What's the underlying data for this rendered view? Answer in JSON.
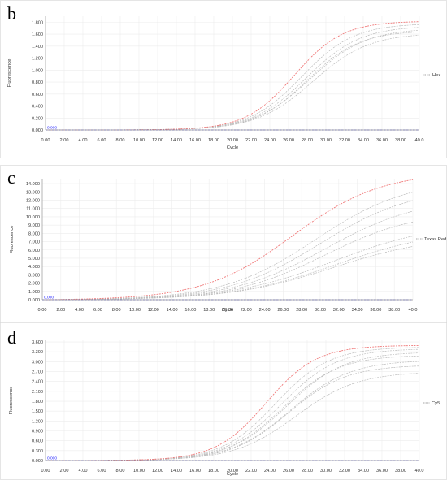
{
  "panels": [
    {
      "letter": "b"
    },
    {
      "letter": "c"
    },
    {
      "letter": "d"
    }
  ],
  "chart_data": [
    {
      "type": "line",
      "panel": "b",
      "xlabel": "Cycle",
      "ylabel": "Fluorescence",
      "xlim": [
        0,
        40
      ],
      "ylim": [
        0,
        1.9
      ],
      "x_ticks": [
        "0.00",
        "2.00",
        "4.00",
        "6.00",
        "8.00",
        "10.00",
        "12.00",
        "14.00",
        "16.00",
        "18.00",
        "20.00",
        "22.00",
        "24.00",
        "26.00",
        "28.00",
        "30.00",
        "32.00",
        "34.00",
        "36.00",
        "38.00",
        "40.0"
      ],
      "y_ticks": [
        "0.000",
        "0.200",
        "0.400",
        "0.600",
        "0.800",
        "1.000",
        "1.200",
        "1.400",
        "1.600",
        "1.800"
      ],
      "legend": "Hex",
      "legend_position": "right",
      "grid": true,
      "threshold": {
        "value": 0,
        "label": "0.000"
      },
      "colors": {
        "highlight": "#f07a7a",
        "other": "#bcbcbc",
        "threshold": "#2b2bd9"
      },
      "curves": [
        {
          "plateau": 1.82,
          "midpoint": 26.6,
          "slope": 2.6,
          "highlight": true
        },
        {
          "plateau": 1.78,
          "midpoint": 27.4,
          "slope": 2.8
        },
        {
          "plateau": 1.74,
          "midpoint": 27.9,
          "slope": 2.9
        },
        {
          "plateau": 1.7,
          "midpoint": 28.3,
          "slope": 3.0
        },
        {
          "plateau": 1.66,
          "midpoint": 28.0,
          "slope": 2.8
        },
        {
          "plateau": 1.62,
          "midpoint": 28.6,
          "slope": 3.0
        }
      ]
    },
    {
      "type": "line",
      "panel": "c",
      "xlabel": "Cycle",
      "ylabel": "Fluorescence",
      "xlim": [
        0,
        40
      ],
      "ylim": [
        0,
        14.5
      ],
      "x_ticks": [
        "0.00",
        "2.00",
        "4.00",
        "6.00",
        "8.00",
        "10.00",
        "12.00",
        "14.00",
        "16.00",
        "18.00",
        "20.00",
        "22.00",
        "24.00",
        "26.00",
        "28.00",
        "30.00",
        "32.00",
        "34.00",
        "36.00",
        "38.00",
        "40.0"
      ],
      "y_ticks": [
        "0.000",
        "1.000",
        "2.000",
        "3.000",
        "4.000",
        "5.000",
        "6.000",
        "7.000",
        "8.000",
        "9.000",
        "10.000",
        "11.000",
        "12.000",
        "13.000",
        "14.000"
      ],
      "legend": "Texas Red",
      "legend_position": "right",
      "grid": true,
      "threshold": {
        "value": 0,
        "label": "0.000"
      },
      "colors": {
        "highlight": "#f07a7a",
        "other": "#bcbcbc",
        "threshold": "#2b2bd9"
      },
      "curves": [
        {
          "plateau": 15.5,
          "midpoint": 27.0,
          "slope": 4.8,
          "highlight": true
        },
        {
          "plateau": 14.6,
          "midpoint": 29.5,
          "slope": 5.0
        },
        {
          "plateau": 13.6,
          "midpoint": 30.0,
          "slope": 5.0
        },
        {
          "plateau": 12.4,
          "midpoint": 30.6,
          "slope": 5.1
        },
        {
          "plateau": 10.8,
          "midpoint": 30.5,
          "slope": 5.0
        },
        {
          "plateau": 9.4,
          "midpoint": 31.5,
          "slope": 5.6
        },
        {
          "plateau": 8.6,
          "midpoint": 31.8,
          "slope": 5.6
        },
        {
          "plateau": 7.8,
          "midpoint": 31.4,
          "slope": 5.5
        }
      ]
    },
    {
      "type": "line",
      "panel": "d",
      "xlabel": "Cycle",
      "ylabel": "Fluorescence",
      "xlim": [
        0,
        40
      ],
      "ylim": [
        0,
        3.65
      ],
      "x_ticks": [
        "0.00",
        "2.00",
        "4.00",
        "6.00",
        "8.00",
        "10.00",
        "12.00",
        "14.00",
        "16.00",
        "18.00",
        "20.00",
        "22.00",
        "24.00",
        "26.00",
        "28.00",
        "30.00",
        "32.00",
        "34.00",
        "36.00",
        "38.00",
        "40.0"
      ],
      "y_ticks": [
        "0.000",
        "0.300",
        "0.600",
        "0.900",
        "1.200",
        "1.500",
        "1.800",
        "2.100",
        "2.400",
        "2.700",
        "3.000",
        "3.300",
        "3.600"
      ],
      "legend": "Cy5",
      "legend_position": "right",
      "grid": true,
      "threshold": {
        "value": 0,
        "label": "0.000"
      },
      "colors": {
        "highlight": "#f07a7a",
        "other": "#bcbcbc",
        "threshold": "#2b2bd9"
      },
      "curves": [
        {
          "plateau": 3.5,
          "midpoint": 23.6,
          "slope": 2.7,
          "highlight": true
        },
        {
          "plateau": 3.45,
          "midpoint": 24.6,
          "slope": 2.9
        },
        {
          "plateau": 3.4,
          "midpoint": 25.2,
          "slope": 3.0
        },
        {
          "plateau": 3.3,
          "midpoint": 25.8,
          "slope": 3.1
        },
        {
          "plateau": 3.2,
          "midpoint": 25.4,
          "slope": 3.0
        },
        {
          "plateau": 3.05,
          "midpoint": 26.2,
          "slope": 3.2
        },
        {
          "plateau": 2.9,
          "midpoint": 26.0,
          "slope": 3.1
        },
        {
          "plateau": 2.7,
          "midpoint": 26.8,
          "slope": 3.3
        }
      ]
    }
  ]
}
